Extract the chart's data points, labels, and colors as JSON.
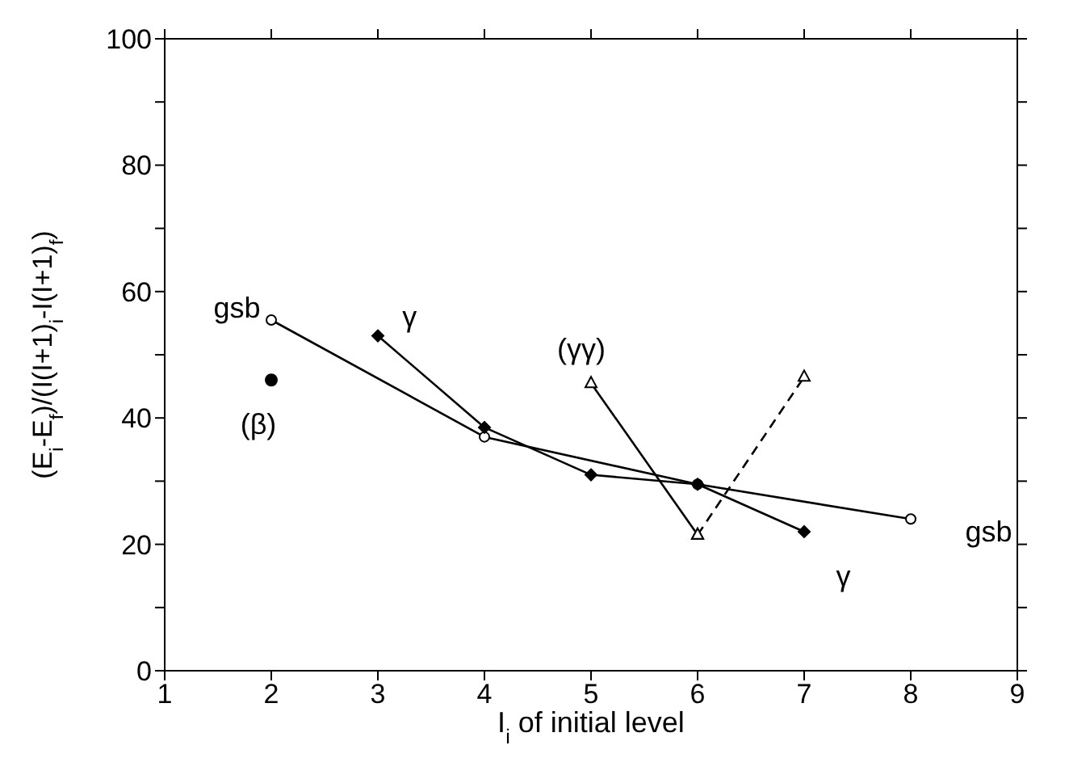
{
  "chart_data": {
    "type": "line",
    "xlabel": "I$_{i}$ of initial level",
    "ylabel": "(E$_{i}$-E$_{f}$)/(I(I+1)$_{i}$-I(I+1)$_{f}$)",
    "xlim": [
      1,
      9
    ],
    "xticks": [
      1,
      2,
      3,
      4,
      5,
      6,
      7,
      8,
      9
    ],
    "ylim": [
      0,
      100
    ],
    "yticks": [
      0,
      {
        "value": 10,
        "label": null
      },
      20,
      {
        "value": 30,
        "label": null
      },
      40,
      {
        "value": 50,
        "label": null
      },
      60,
      {
        "value": 70,
        "label": null
      },
      80,
      {
        "value": 90,
        "label": null
      },
      100
    ],
    "series": [
      {
        "color": "#000000",
        "marker": "circle",
        "x": [
          2,
          4,
          6,
          8
        ],
        "values": [
          55.5,
          37,
          29.5,
          24
        ]
      },
      {
        "color": "#000000",
        "marker": "diamond",
        "x": [
          3,
          4,
          5,
          6,
          7
        ],
        "values": [
          53,
          38.5,
          31,
          29.5,
          22
        ]
      },
      {
        "color": "#000000",
        "marker": "triangle",
        "x": [
          5,
          6
        ],
        "values": [
          45.5,
          21.5
        ]
      },
      {
        "color": "#000000",
        "marker": "triangle",
        "line_style": "dashed",
        "x": [
          6,
          7
        ],
        "values": [
          21.5,
          46.5
        ]
      },
      {
        "type": "scatter",
        "color": "#000000",
        "marker": "circle",
        "x": [
          2
        ],
        "values": [
          46
        ]
      }
    ],
    "annotations": [
      "gsb",
      "γ",
      "(γγ)",
      "(β)",
      "gsb",
      "γ"
    ]
  }
}
